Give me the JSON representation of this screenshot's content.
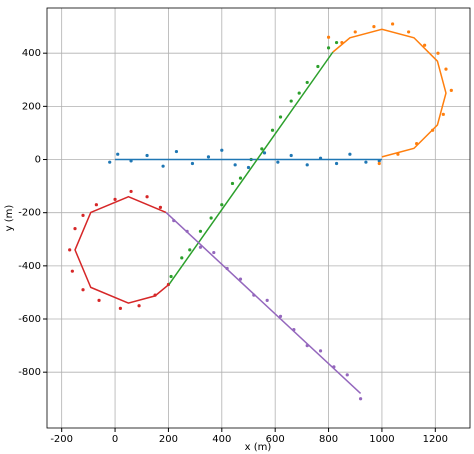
{
  "chart_data": {
    "type": "scatter",
    "x_label": "x (m)",
    "y_label": "y (m)",
    "xlim": [
      -255,
      1330
    ],
    "ylim": [
      -1010,
      570
    ],
    "xticks": [
      -200,
      0,
      200,
      400,
      600,
      800,
      1000,
      1200
    ],
    "yticks": [
      -800,
      -600,
      -400,
      -200,
      0,
      200,
      400
    ],
    "grid": true,
    "series": [
      {
        "color": "#1f77b4",
        "mode": "scatter",
        "x": [
          -20,
          10,
          60,
          120,
          180,
          230,
          290,
          350,
          400,
          450,
          500,
          560,
          610,
          660,
          720,
          770,
          830,
          880,
          940,
          990
        ],
        "y": [
          -10,
          20,
          -5,
          15,
          -25,
          30,
          -15,
          10,
          35,
          -20,
          -30,
          25,
          -10,
          15,
          -20,
          5,
          -15,
          20,
          -10,
          -5
        ]
      },
      {
        "color": "#2ca02c",
        "mode": "scatter",
        "x": [
          210,
          250,
          280,
          320,
          360,
          400,
          440,
          470,
          510,
          550,
          590,
          620,
          660,
          690,
          720,
          760,
          800,
          830
        ],
        "y": [
          -440,
          -370,
          -340,
          -270,
          -220,
          -170,
          -90,
          -70,
          0,
          40,
          110,
          160,
          220,
          250,
          290,
          350,
          420,
          440
        ]
      },
      {
        "color": "#9467bd",
        "mode": "scatter",
        "x": [
          220,
          270,
          320,
          370,
          420,
          470,
          520,
          570,
          620,
          670,
          720,
          770,
          820,
          870,
          920
        ],
        "y": [
          -230,
          -270,
          -330,
          -350,
          -410,
          -450,
          -510,
          -530,
          -590,
          -640,
          -700,
          -720,
          -780,
          -810,
          -900
        ]
      },
      {
        "color": "#ff7f0e",
        "mode": "scatter",
        "x": [
          990,
          1060,
          1130,
          1190,
          1230,
          1260,
          1240,
          1210,
          1160,
          1100,
          1040,
          970,
          900,
          850,
          800
        ],
        "y": [
          -15,
          20,
          60,
          110,
          170,
          260,
          340,
          400,
          430,
          480,
          510,
          500,
          480,
          440,
          460
        ]
      },
      {
        "color": "#d62728",
        "mode": "scatter",
        "x": [
          -170,
          -150,
          -120,
          -70,
          0,
          60,
          120,
          170,
          -160,
          -120,
          -60,
          20,
          90,
          150,
          200
        ],
        "y": [
          -340,
          -260,
          -210,
          -170,
          -150,
          -120,
          -140,
          -180,
          -420,
          -490,
          -530,
          -560,
          -550,
          -510,
          -470
        ]
      },
      {
        "color": "#1f77b4",
        "mode": "line",
        "x": [
          0,
          1000
        ],
        "y": [
          0,
          0
        ]
      },
      {
        "color": "#ff7f0e",
        "mode": "line",
        "x": [
          1000,
          1120,
          1208,
          1240,
          1208,
          1120,
          1000,
          880,
          816
        ],
        "y": [
          10,
          42,
          130,
          250,
          370,
          458,
          490,
          458,
          404
        ]
      },
      {
        "color": "#2ca02c",
        "mode": "line",
        "x": [
          203,
          816
        ],
        "y": [
          -469,
          404
        ]
      },
      {
        "color": "#d62728",
        "mode": "line",
        "x": [
          191,
          50,
          -91,
          -150,
          -91,
          50,
          150,
          203
        ],
        "y": [
          -199,
          -140,
          -199,
          -340,
          -481,
          -540,
          -513,
          -469
        ]
      },
      {
        "color": "#9467bd",
        "mode": "line",
        "x": [
          191,
          920
        ],
        "y": [
          -199,
          -880
        ]
      }
    ]
  }
}
